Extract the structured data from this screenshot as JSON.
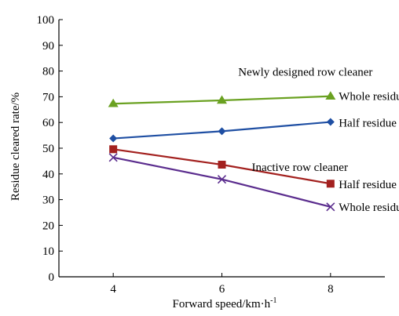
{
  "chart_data": {
    "type": "line",
    "xlabel": "Forward speed/km·h",
    "xlabel_superscript": "-1",
    "ylabel": "Residue cleared rate/%",
    "x": [
      4,
      6,
      8
    ],
    "xticks": [
      "4",
      "6",
      "8"
    ],
    "yticks": [
      "0",
      "10",
      "20",
      "30",
      "40",
      "50",
      "60",
      "70",
      "80",
      "90",
      "100"
    ],
    "ylim": [
      0,
      100
    ],
    "xlim": [
      3,
      9
    ],
    "grid": false,
    "series": [
      {
        "name": "Whole residue",
        "group": "Newly designed row cleaner",
        "values": [
          67.3,
          68.6,
          70.2
        ],
        "color": "#6aa121",
        "marker": "triangle"
      },
      {
        "name": "Half residue",
        "group": "Newly designed row cleaner",
        "values": [
          53.8,
          56.6,
          60.2
        ],
        "color": "#1f4fa3",
        "marker": "diamond"
      },
      {
        "name": "Half residue",
        "group": "Inactive row cleaner",
        "values": [
          49.6,
          43.6,
          36.2
        ],
        "color": "#a3211f",
        "marker": "square"
      },
      {
        "name": "Whole residue",
        "group": "Inactive row cleaner",
        "values": [
          46.4,
          37.9,
          27.2
        ],
        "color": "#5b2d8e",
        "marker": "x"
      }
    ],
    "annotations": [
      {
        "text": "Newly designed row cleaner",
        "x": 6.3,
        "y": 78.2
      },
      {
        "text": "Whole residue",
        "x": 8.15,
        "y": 68.8
      },
      {
        "text": "Half residue",
        "x": 8.15,
        "y": 58.4
      },
      {
        "text": "Inactive row cleaner",
        "x": 6.55,
        "y": 41.2
      },
      {
        "text": "Half residue",
        "x": 8.15,
        "y": 34.4
      },
      {
        "text": "Whole residue",
        "x": 8.15,
        "y": 25.6
      }
    ]
  }
}
